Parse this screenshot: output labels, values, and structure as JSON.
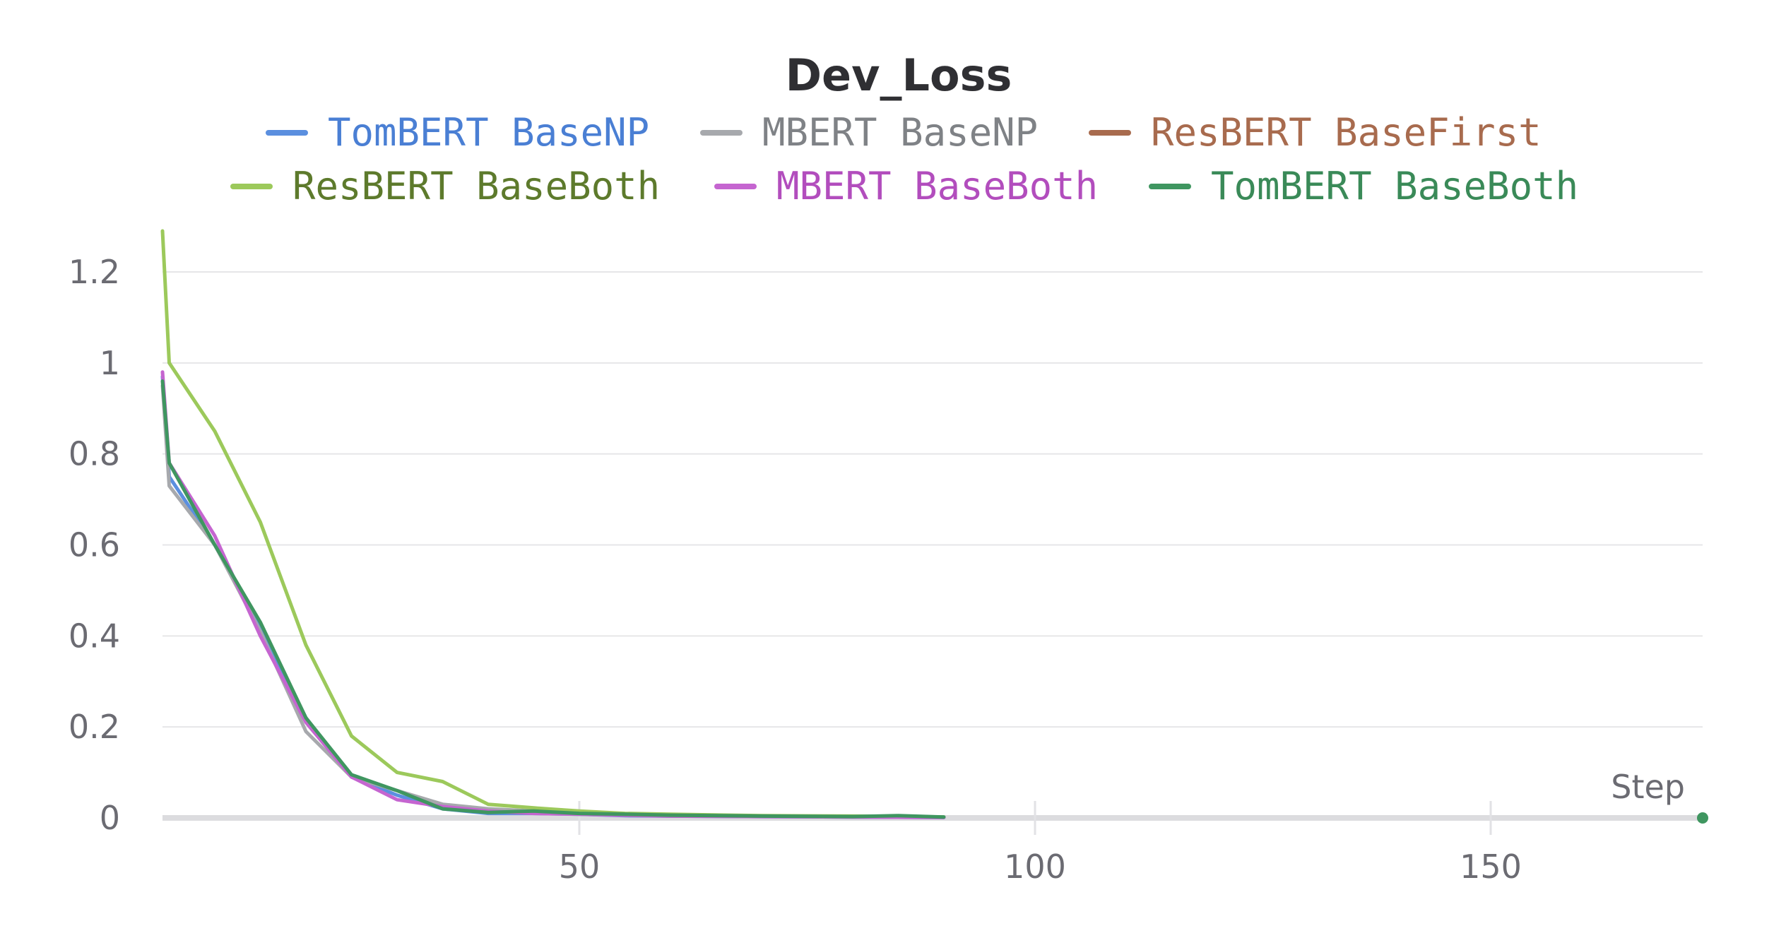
{
  "chart_data": {
    "type": "line",
    "title": "Dev_Loss",
    "xlabel": "Step",
    "ylabel": "",
    "xlim": [
      0,
      175
    ],
    "ylim": [
      0,
      1.3
    ],
    "x_ticks": [
      50,
      100,
      150
    ],
    "y_ticks": [
      0,
      0.2,
      0.4,
      0.6,
      0.8,
      1,
      1.2
    ],
    "y_tick_labels": [
      "0",
      "0.2",
      "0.4",
      "0.6",
      "0.8",
      "1",
      "1.2"
    ],
    "x_tick_labels": [
      "50",
      "100",
      "150"
    ],
    "grid": true,
    "legend_position": "top",
    "series": [
      {
        "name": "TomBERT BaseNP",
        "color": "#5b8fdf",
        "text_color": "#4a7fd4",
        "x": [
          0,
          5,
          10,
          15,
          20,
          25,
          30,
          35,
          40,
          45,
          50,
          55,
          60,
          70,
          80,
          90
        ],
        "values": [
          0.97,
          0.75,
          0.6,
          0.42,
          0.22,
          0.09,
          0.05,
          0.02,
          0.01,
          0.01,
          0.008,
          0.005,
          0.004,
          0.003,
          0.002,
          0.001
        ]
      },
      {
        "name": "MBERT BaseNP",
        "color": "#a7a9ad",
        "text_color": "#7f8286",
        "x": [
          0,
          5,
          10,
          15,
          20,
          25,
          30,
          35,
          40,
          45,
          50,
          55,
          60,
          70,
          80,
          90
        ],
        "values": [
          0.95,
          0.73,
          0.6,
          0.41,
          0.19,
          0.09,
          0.06,
          0.03,
          0.02,
          0.015,
          0.01,
          0.008,
          0.006,
          0.004,
          0.003,
          0.002
        ]
      },
      {
        "name": "ResBERT BaseFirst",
        "color": "#a86b4e",
        "text_color": "#a86b4e",
        "x": [],
        "values": []
      },
      {
        "name": "ResBERT BaseBoth",
        "color": "#9cc95b",
        "text_color": "#5d7a2c",
        "x": [
          0,
          5,
          10,
          15,
          20,
          25,
          30,
          35,
          40,
          45,
          50,
          55,
          60,
          70,
          80,
          90
        ],
        "values": [
          1.29,
          1.0,
          0.85,
          0.65,
          0.38,
          0.18,
          0.1,
          0.08,
          0.03,
          0.022,
          0.015,
          0.01,
          0.008,
          0.005,
          0.004,
          0.002
        ]
      },
      {
        "name": "MBERT BaseBoth",
        "color": "#c565d0",
        "text_color": "#b24dbd",
        "x": [
          0,
          5,
          10,
          15,
          20,
          25,
          30,
          35,
          40,
          45,
          50,
          55,
          60,
          70,
          80,
          90
        ],
        "values": [
          0.98,
          0.78,
          0.62,
          0.4,
          0.21,
          0.09,
          0.04,
          0.025,
          0.015,
          0.01,
          0.008,
          0.006,
          0.004,
          0.003,
          0.002,
          0.001
        ]
      },
      {
        "name": "TomBERT BaseBoth",
        "color": "#3f9660",
        "text_color": "#3a8a58",
        "x": [
          0,
          5,
          10,
          15,
          20,
          25,
          30,
          35,
          40,
          45,
          50,
          55,
          60,
          70,
          80,
          85,
          90
        ],
        "values": [
          0.96,
          0.78,
          0.6,
          0.43,
          0.22,
          0.095,
          0.06,
          0.02,
          0.012,
          0.015,
          0.01,
          0.008,
          0.006,
          0.004,
          0.003,
          0.005,
          0.002
        ]
      }
    ]
  }
}
